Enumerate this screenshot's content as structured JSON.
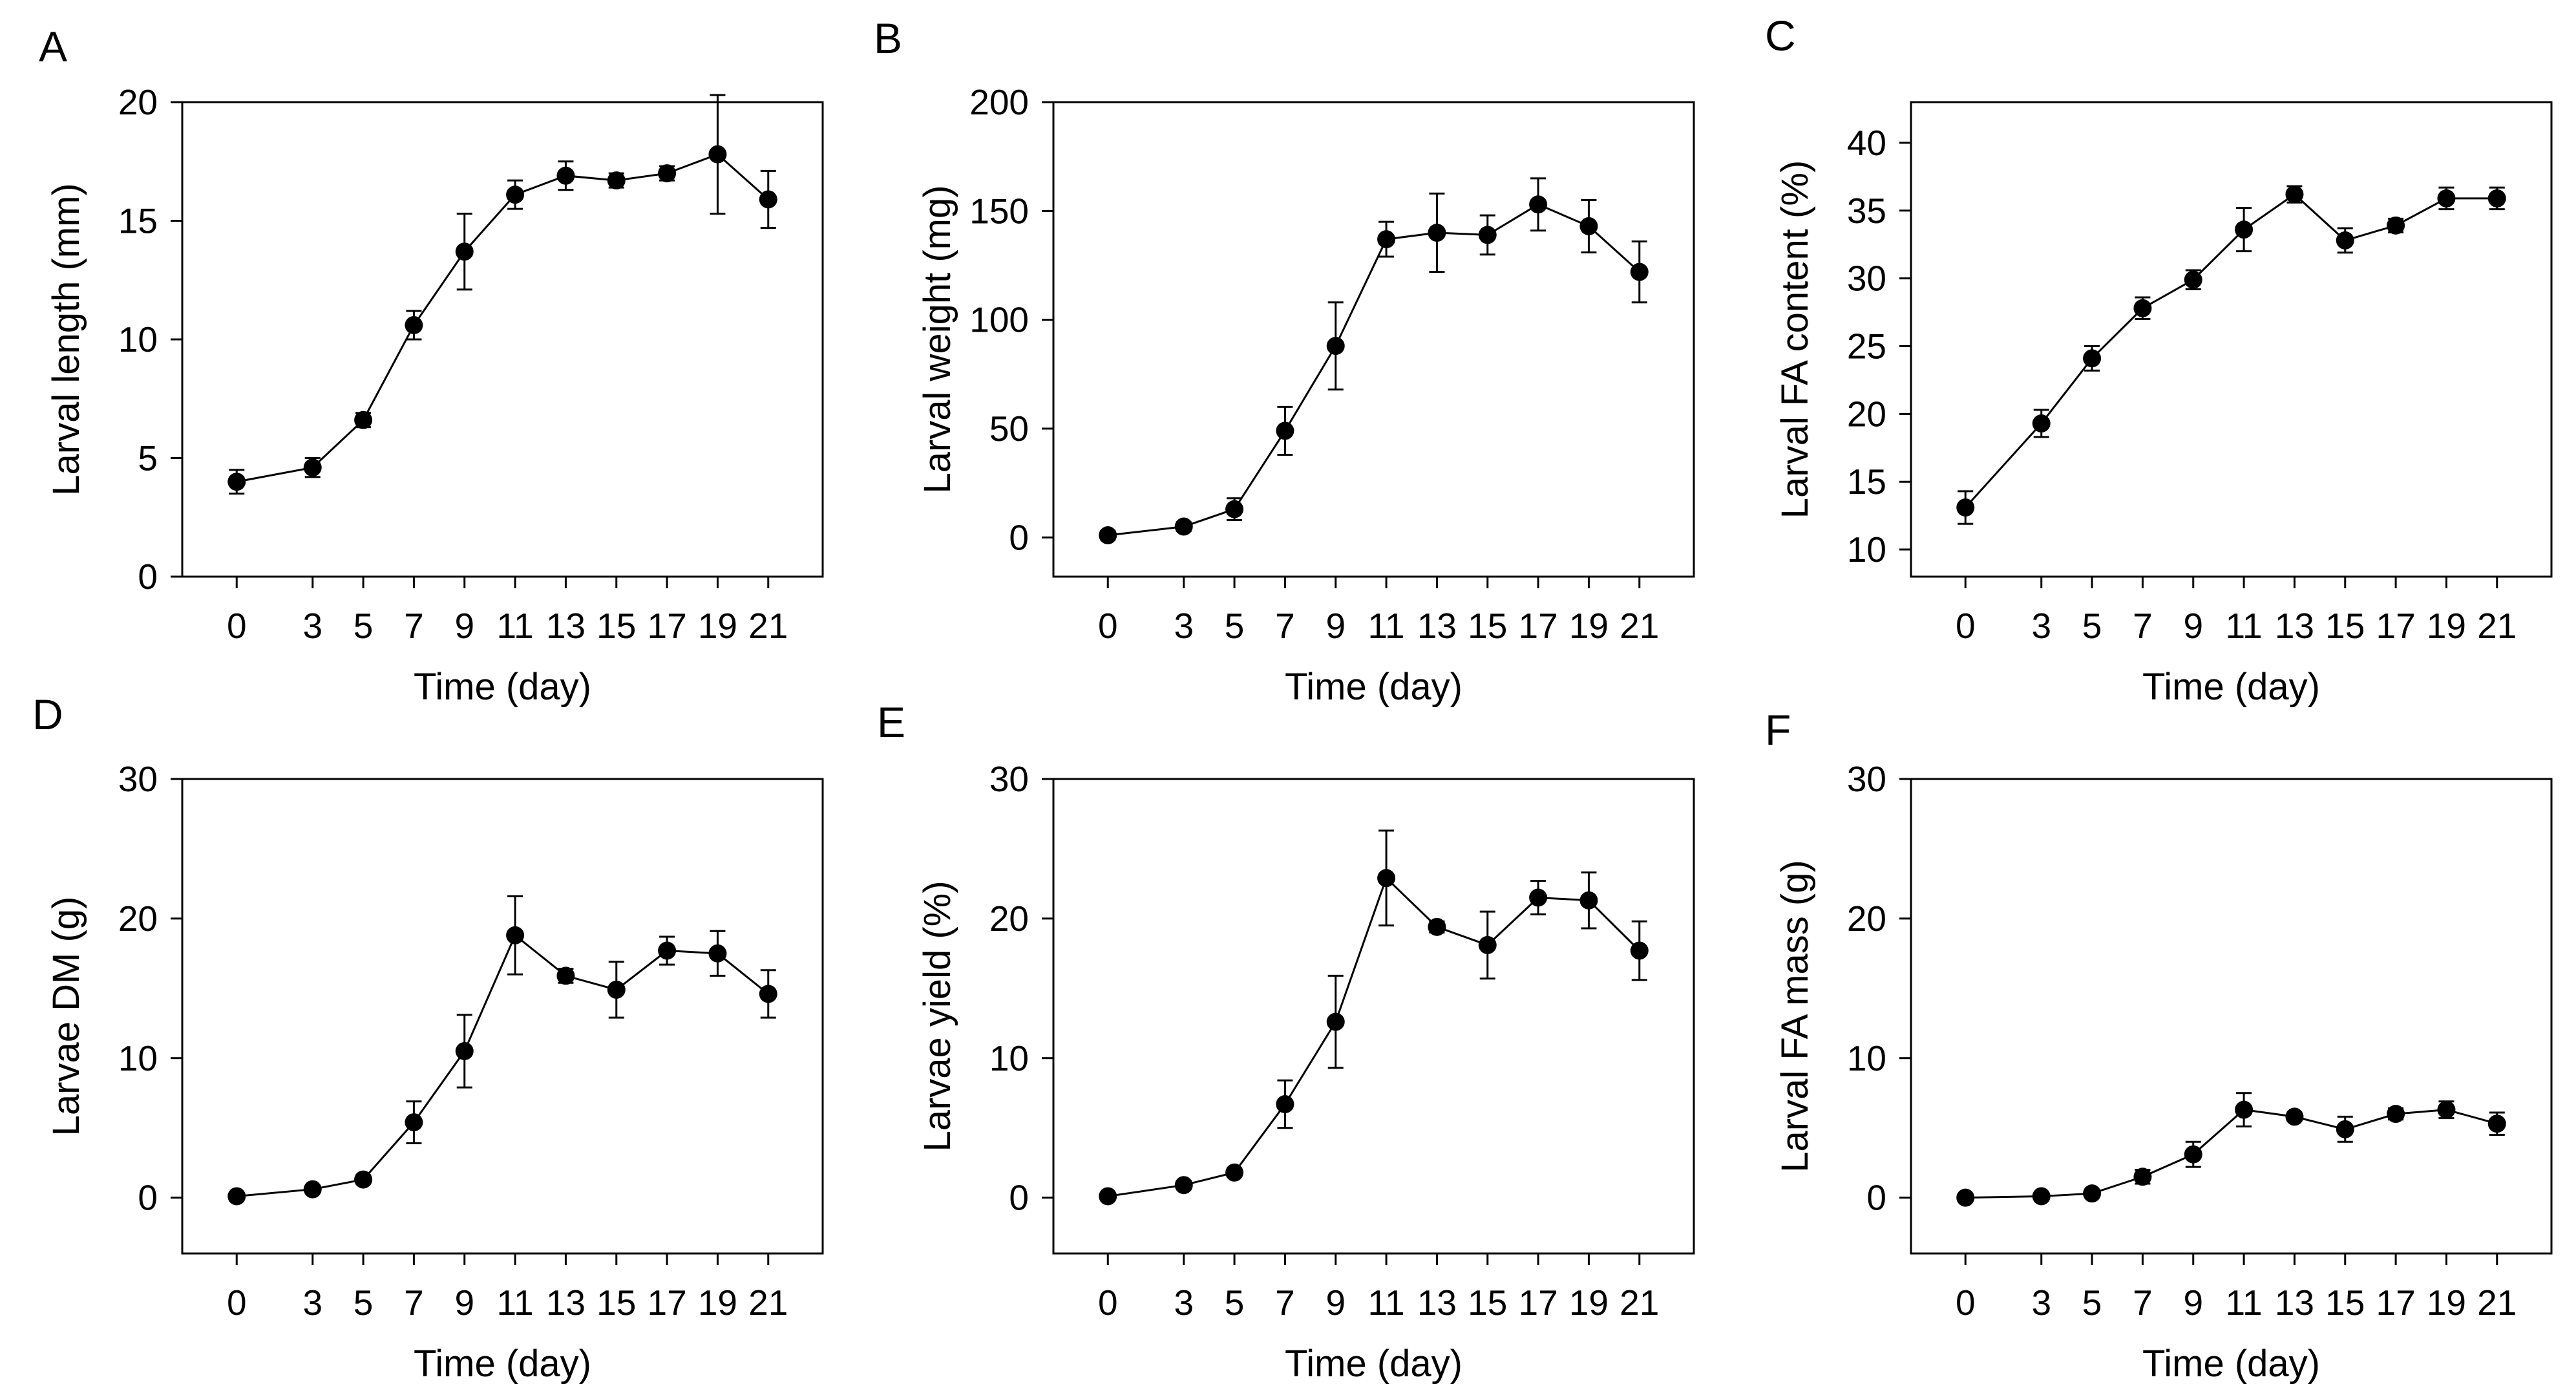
{
  "figure": {
    "colors": {
      "ink": "#000000",
      "background": "#ffffff"
    }
  },
  "chart_data": [
    {
      "panel": "A",
      "type": "line",
      "xlabel": "Time (day)",
      "ylabel": "Larval length (mm)",
      "x": [
        0,
        3,
        5,
        7,
        9,
        11,
        13,
        15,
        17,
        19,
        21
      ],
      "ylim": [
        0,
        20
      ],
      "yticks": [
        0,
        5,
        10,
        15,
        20
      ],
      "grid": false,
      "legend": "none",
      "series": [
        {
          "name": "Larval length",
          "values": [
            4.0,
            4.6,
            6.6,
            10.6,
            13.7,
            16.1,
            16.9,
            16.7,
            17.0,
            17.8,
            15.9
          ],
          "errors": [
            0.5,
            0.4,
            0.3,
            0.6,
            1.6,
            0.6,
            0.6,
            0.3,
            0.3,
            2.5,
            1.2
          ]
        }
      ]
    },
    {
      "panel": "B",
      "type": "line",
      "xlabel": "Time (day)",
      "ylabel": "Larval weight (mg)",
      "x": [
        0,
        3,
        5,
        7,
        9,
        11,
        13,
        15,
        17,
        19,
        21
      ],
      "ylim": [
        -18,
        200
      ],
      "yticks": [
        0,
        50,
        100,
        150,
        200
      ],
      "grid": false,
      "legend": "none",
      "series": [
        {
          "name": "Larval weight",
          "values": [
            1,
            5,
            13,
            49,
            88,
            137,
            140,
            139,
            153,
            143,
            122
          ],
          "errors": [
            2,
            2,
            5,
            11,
            20,
            8,
            18,
            9,
            12,
            12,
            14
          ]
        }
      ]
    },
    {
      "panel": "C",
      "type": "line",
      "xlabel": "Time (day)",
      "ylabel": "Larval FA content (%)",
      "x": [
        0,
        3,
        5,
        7,
        9,
        11,
        13,
        15,
        17,
        19,
        21
      ],
      "ylim": [
        8,
        43
      ],
      "yticks": [
        10,
        15,
        20,
        25,
        30,
        35,
        40
      ],
      "grid": false,
      "legend": "none",
      "series": [
        {
          "name": "Larval FA content",
          "values": [
            13.1,
            19.3,
            24.1,
            27.8,
            29.9,
            33.6,
            36.2,
            32.8,
            33.9,
            35.9,
            35.9
          ],
          "errors": [
            1.2,
            1.0,
            0.9,
            0.8,
            0.7,
            1.6,
            0.6,
            0.9,
            0.5,
            0.8,
            0.8
          ]
        }
      ]
    },
    {
      "panel": "D",
      "type": "line",
      "xlabel": "Time (day)",
      "ylabel": "Larvae DM (g)",
      "x": [
        0,
        3,
        5,
        7,
        9,
        11,
        13,
        15,
        17,
        19,
        21
      ],
      "ylim": [
        -4,
        30
      ],
      "yticks": [
        0,
        10,
        20,
        30
      ],
      "grid": false,
      "legend": "none",
      "series": [
        {
          "name": "Larvae DM",
          "values": [
            0.1,
            0.6,
            1.3,
            5.4,
            10.5,
            18.8,
            15.9,
            14.9,
            17.7,
            17.5,
            14.6
          ],
          "errors": [
            0.2,
            0.2,
            0.3,
            1.5,
            2.6,
            2.8,
            0.5,
            2.0,
            1.0,
            1.6,
            1.7
          ]
        }
      ]
    },
    {
      "panel": "E",
      "type": "line",
      "xlabel": "Time (day)",
      "ylabel": "Larvae yield (%)",
      "x": [
        0,
        3,
        5,
        7,
        9,
        11,
        13,
        15,
        17,
        19,
        21
      ],
      "ylim": [
        -4,
        30
      ],
      "yticks": [
        0,
        10,
        20,
        30
      ],
      "grid": false,
      "legend": "none",
      "series": [
        {
          "name": "Larvae yield",
          "values": [
            0.1,
            0.9,
            1.8,
            6.7,
            12.6,
            22.9,
            19.4,
            18.1,
            21.5,
            21.3,
            17.7
          ],
          "errors": [
            0.2,
            0.3,
            0.3,
            1.7,
            3.3,
            3.4,
            0.4,
            2.4,
            1.2,
            2.0,
            2.1
          ]
        }
      ]
    },
    {
      "panel": "F",
      "type": "line",
      "xlabel": "Time (day)",
      "ylabel": "Larval FA mass (g)",
      "x": [
        0,
        3,
        5,
        7,
        9,
        11,
        13,
        15,
        17,
        19,
        21
      ],
      "ylim": [
        -4,
        30
      ],
      "yticks": [
        0,
        10,
        20,
        30
      ],
      "grid": false,
      "legend": "none",
      "series": [
        {
          "name": "Larval FA mass",
          "values": [
            0.0,
            0.1,
            0.3,
            1.5,
            3.1,
            6.3,
            5.8,
            4.9,
            6.0,
            6.3,
            5.3
          ],
          "errors": [
            0.1,
            0.1,
            0.2,
            0.5,
            0.9,
            1.2,
            0.3,
            0.9,
            0.4,
            0.6,
            0.8
          ]
        }
      ]
    }
  ]
}
